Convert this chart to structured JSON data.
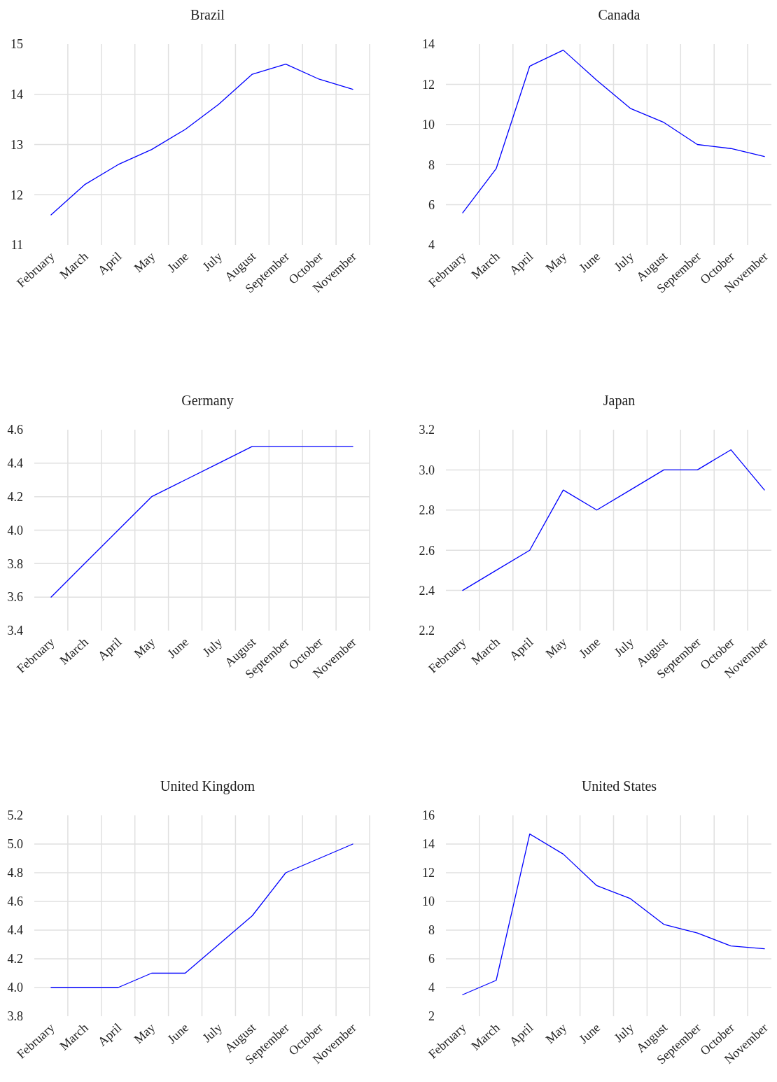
{
  "chart_data": [
    {
      "type": "line",
      "title": "Brazil",
      "categories": [
        "February",
        "March",
        "April",
        "May",
        "June",
        "July",
        "August",
        "September",
        "October",
        "November"
      ],
      "series": [
        {
          "color": "#0000ff",
          "values": [
            11.6,
            12.2,
            12.6,
            12.9,
            13.3,
            13.8,
            14.4,
            14.6,
            14.3,
            14.1
          ]
        }
      ],
      "ylim": [
        11,
        15
      ],
      "yticks": [
        11,
        12,
        13,
        14,
        15
      ],
      "grid": true
    },
    {
      "type": "line",
      "title": "Canada",
      "categories": [
        "February",
        "March",
        "April",
        "May",
        "June",
        "July",
        "August",
        "September",
        "October",
        "November"
      ],
      "series": [
        {
          "color": "#0000ff",
          "values": [
            5.6,
            7.8,
            12.9,
            13.7,
            12.2,
            10.8,
            10.1,
            9.0,
            8.8,
            8.4
          ]
        }
      ],
      "ylim": [
        4,
        14
      ],
      "yticks": [
        4,
        6,
        8,
        10,
        12,
        14
      ],
      "grid": true
    },
    {
      "type": "line",
      "title": "Germany",
      "categories": [
        "February",
        "March",
        "April",
        "May",
        "June",
        "July",
        "August",
        "September",
        "October",
        "November"
      ],
      "series": [
        {
          "color": "#0000ff",
          "values": [
            3.6,
            3.8,
            4.0,
            4.2,
            4.3,
            4.4,
            4.5,
            4.5,
            4.5,
            4.5
          ]
        }
      ],
      "ylim": [
        3.4,
        4.6
      ],
      "yticks": [
        {
          "value": 3.4,
          "label": "3.4"
        },
        {
          "value": 3.6,
          "label": "3.6"
        },
        {
          "value": 3.8,
          "label": "3.8"
        },
        {
          "value": 4,
          "label": "4.0"
        },
        {
          "value": 4.2,
          "label": "4.2"
        },
        {
          "value": 4.4,
          "label": "4.4"
        },
        {
          "value": 4.6,
          "label": "4.6"
        }
      ],
      "grid": true
    },
    {
      "type": "line",
      "title": "Japan",
      "categories": [
        "February",
        "March",
        "April",
        "May",
        "June",
        "July",
        "August",
        "September",
        "October",
        "November"
      ],
      "series": [
        {
          "color": "#0000ff",
          "values": [
            2.4,
            2.5,
            2.6,
            2.9,
            2.8,
            2.9,
            3.0,
            3.0,
            3.1,
            2.9
          ]
        }
      ],
      "ylim": [
        2.2,
        3.2
      ],
      "yticks": [
        {
          "value": 2.2,
          "label": "2.2"
        },
        {
          "value": 2.4,
          "label": "2.4"
        },
        {
          "value": 2.6,
          "label": "2.6"
        },
        {
          "value": 2.8,
          "label": "2.8"
        },
        {
          "value": 3,
          "label": "3.0"
        },
        {
          "value": 3.2,
          "label": "3.2"
        }
      ],
      "grid": true
    },
    {
      "type": "line",
      "title": "United Kingdom",
      "categories": [
        "February",
        "March",
        "April",
        "May",
        "June",
        "July",
        "August",
        "September",
        "October",
        "November"
      ],
      "series": [
        {
          "color": "#0000ff",
          "values": [
            4.0,
            4.0,
            4.0,
            4.1,
            4.1,
            4.3,
            4.5,
            4.8,
            4.9,
            5.0
          ]
        }
      ],
      "ylim": [
        3.8,
        5.2
      ],
      "yticks": [
        {
          "value": 3.8,
          "label": "3.8"
        },
        {
          "value": 4,
          "label": "4.0"
        },
        {
          "value": 4.2,
          "label": "4.2"
        },
        {
          "value": 4.4,
          "label": "4.4"
        },
        {
          "value": 4.6,
          "label": "4.6"
        },
        {
          "value": 4.8,
          "label": "4.8"
        },
        {
          "value": 5,
          "label": "5.0"
        },
        {
          "value": 5.2,
          "label": "5.2"
        }
      ],
      "grid": true
    },
    {
      "type": "line",
      "title": "United States",
      "categories": [
        "February",
        "March",
        "April",
        "May",
        "June",
        "July",
        "August",
        "September",
        "October",
        "November"
      ],
      "series": [
        {
          "color": "#0000ff",
          "values": [
            3.5,
            4.5,
            14.7,
            13.3,
            11.1,
            10.2,
            8.4,
            7.8,
            6.9,
            6.7
          ]
        }
      ],
      "ylim": [
        2,
        16
      ],
      "yticks": [
        2,
        4,
        6,
        8,
        10,
        12,
        14,
        16
      ],
      "grid": true
    }
  ]
}
